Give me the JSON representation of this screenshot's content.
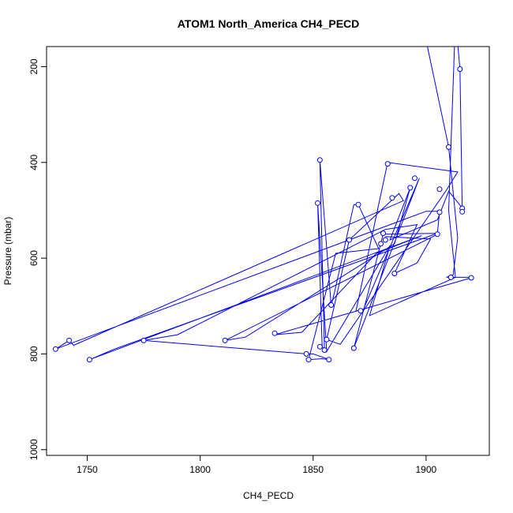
{
  "chart_data": {
    "type": "line",
    "title": "ATOM1 North_America CH4_PECD",
    "xlabel": "CH4_PECD",
    "ylabel": "Pressure (mbar)",
    "xlim": [
      1732,
      1928
    ],
    "ylim": [
      1012,
      158
    ],
    "y_reversed": true,
    "x_ticks": [
      1750,
      1800,
      1850,
      1900
    ],
    "y_ticks": [
      200,
      400,
      600,
      800,
      1000
    ],
    "grid": false,
    "legend": "none",
    "series_color": "#0000ff",
    "marker": "open-circle",
    "points": [
      [
        1896,
        158
      ],
      [
        1898,
        100
      ],
      [
        1910,
        368
      ],
      [
        1914,
        558
      ],
      [
        1912,
        635
      ],
      [
        1909,
        640
      ],
      [
        1919,
        640
      ],
      [
        1920,
        641
      ],
      [
        1833,
        760
      ],
      [
        1845,
        755
      ],
      [
        1878,
        590
      ],
      [
        1898,
        553
      ],
      [
        1751,
        812
      ],
      [
        1762,
        790
      ],
      [
        1905,
        548
      ],
      [
        1906,
        502
      ],
      [
        1900,
        502
      ],
      [
        1736,
        790
      ],
      [
        1742,
        772
      ],
      [
        1744,
        782
      ],
      [
        1890,
        480
      ],
      [
        1888,
        465
      ],
      [
        1866,
        562
      ],
      [
        1856,
        770
      ],
      [
        1862,
        780
      ],
      [
        1909,
        458
      ],
      [
        1914,
        420
      ],
      [
        1883,
        400
      ],
      [
        1869,
        710
      ],
      [
        1872,
        710
      ],
      [
        1897,
        433
      ],
      [
        1868,
        788
      ],
      [
        1881,
        550
      ],
      [
        1906,
        548
      ],
      [
        1811,
        772
      ],
      [
        1820,
        765
      ],
      [
        1886,
        570
      ],
      [
        1893,
        453
      ],
      [
        1884,
        562
      ],
      [
        1905,
        520
      ],
      [
        1910,
        460
      ],
      [
        1916,
        495
      ],
      [
        1916,
        503
      ],
      [
        1915,
        205
      ],
      [
        1913,
        100
      ],
      [
        1910,
        500
      ],
      [
        1913,
        640
      ],
      [
        1875,
        720
      ],
      [
        1884,
        574
      ],
      [
        1856,
        795
      ],
      [
        1852,
        485
      ],
      [
        1854,
        785
      ],
      [
        1855,
        790
      ],
      [
        1853,
        395
      ],
      [
        1858,
        700
      ],
      [
        1860,
        660
      ],
      [
        1868,
        488
      ],
      [
        1870,
        488
      ],
      [
        1879,
        580
      ],
      [
        1860,
        590
      ],
      [
        1848,
        812
      ],
      [
        1854,
        810
      ],
      [
        1858,
        813
      ],
      [
        1850,
        800
      ],
      [
        1847,
        800
      ],
      [
        1775,
        772
      ],
      [
        1790,
        760
      ],
      [
        1882,
        540
      ],
      [
        1896,
        530
      ],
      [
        1886,
        632
      ],
      [
        1896,
        610
      ],
      [
        1902,
        560
      ],
      [
        1882,
        555
      ]
    ],
    "markers": [
      [
        1736,
        790
      ],
      [
        1742,
        772
      ],
      [
        1751,
        812
      ],
      [
        1775,
        772
      ],
      [
        1811,
        772
      ],
      [
        1833,
        757
      ],
      [
        1847,
        800
      ],
      [
        1848,
        812
      ],
      [
        1852,
        485
      ],
      [
        1853,
        395
      ],
      [
        1853,
        785
      ],
      [
        1855,
        792
      ],
      [
        1856,
        770
      ],
      [
        1857,
        812
      ],
      [
        1858,
        698
      ],
      [
        1866,
        562
      ],
      [
        1868,
        788
      ],
      [
        1870,
        488
      ],
      [
        1871,
        710
      ],
      [
        1880,
        570
      ],
      [
        1881,
        548
      ],
      [
        1882,
        562
      ],
      [
        1883,
        403
      ],
      [
        1885,
        474
      ],
      [
        1886,
        632
      ],
      [
        1893,
        453
      ],
      [
        1895,
        433
      ],
      [
        1905,
        550
      ],
      [
        1906,
        504
      ],
      [
        1906,
        456
      ],
      [
        1910,
        368
      ],
      [
        1911,
        640
      ],
      [
        1915,
        205
      ],
      [
        1916,
        496
      ],
      [
        1916,
        503
      ],
      [
        1920,
        641
      ]
    ]
  }
}
